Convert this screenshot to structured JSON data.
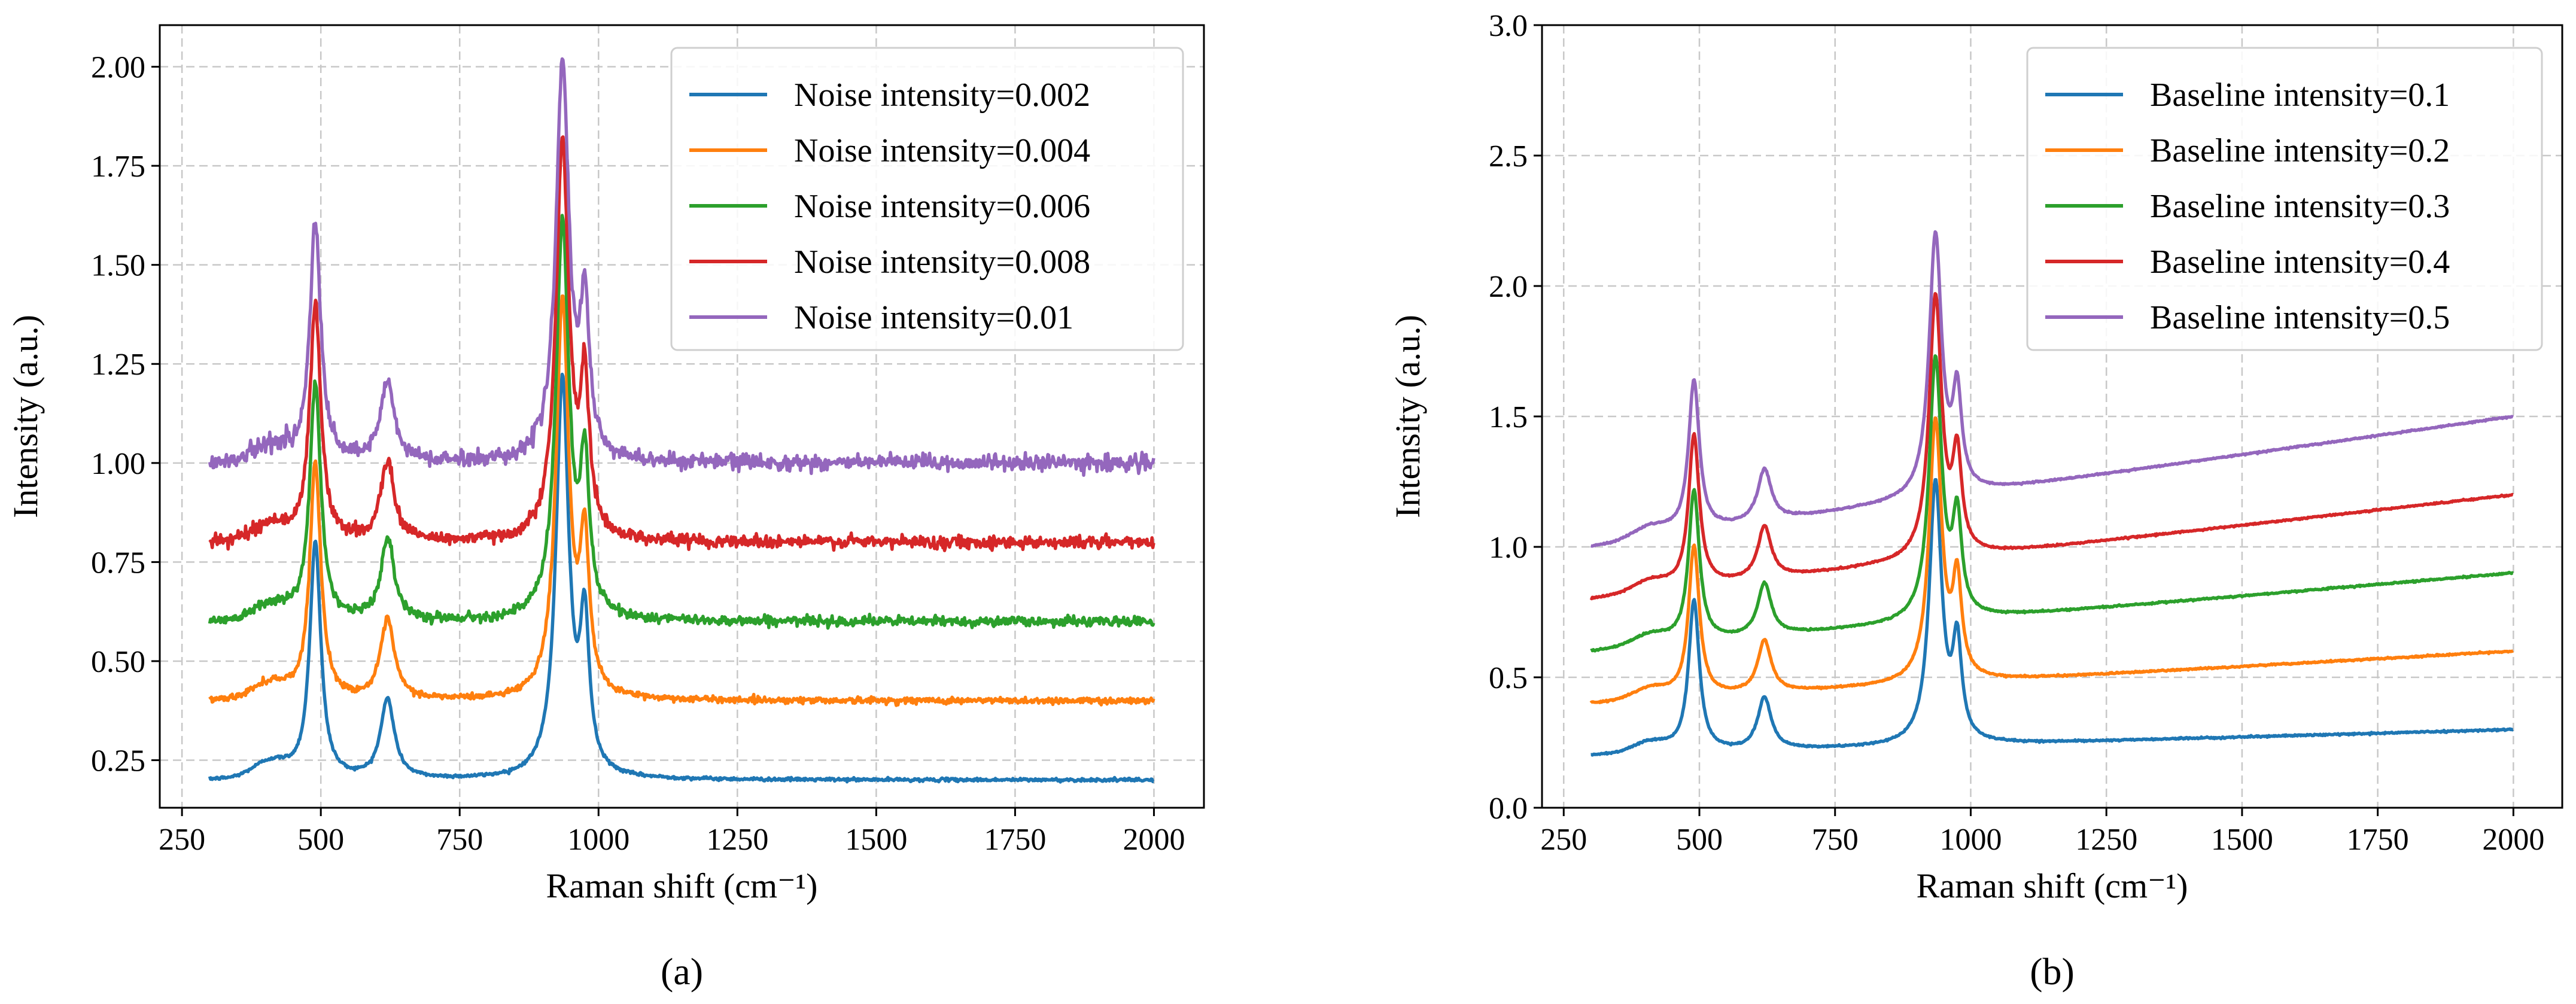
{
  "chart_data": [
    {
      "type": "line",
      "panel_label": "(a)",
      "xlabel": "Raman shift (cm⁻¹)",
      "ylabel": "Intensity (a.u.)",
      "xlim": [
        210,
        2090
      ],
      "ylim": [
        0.13,
        2.105
      ],
      "xticks": [
        250,
        500,
        750,
        1000,
        1250,
        1500,
        1750,
        2000
      ],
      "yticks": [
        0.25,
        0.5,
        0.75,
        1.0,
        1.25,
        1.5,
        1.75,
        2.0
      ],
      "ytick_labels": [
        "0.25",
        "0.50",
        "0.75",
        "1.00",
        "1.25",
        "1.50",
        "1.75",
        "2.00"
      ],
      "grid": true,
      "legend_position": "top-right",
      "x_range": [
        300,
        2000
      ],
      "peaks": [
        {
          "center": 490,
          "width": 12
        },
        {
          "center": 620,
          "width": 15
        },
        {
          "center": 935,
          "width": 14
        },
        {
          "center": 975,
          "width": 10
        }
      ],
      "series": [
        {
          "name": "Noise intensity=0.002",
          "color": "#1f77b4",
          "offset": 0.2,
          "noise": 0.002,
          "baseline_slope": 0,
          "peak_heights": [
            0.6,
            0.2,
            1.0,
            0.37
          ]
        },
        {
          "name": "Noise intensity=0.004",
          "color": "#ff7f0e",
          "offset": 0.4,
          "noise": 0.004,
          "baseline_slope": 0,
          "peak_heights": [
            0.6,
            0.2,
            1.0,
            0.37
          ]
        },
        {
          "name": "Noise intensity=0.006",
          "color": "#2ca02c",
          "offset": 0.6,
          "noise": 0.006,
          "baseline_slope": 0,
          "peak_heights": [
            0.6,
            0.2,
            1.0,
            0.37
          ]
        },
        {
          "name": "Noise intensity=0.008",
          "color": "#d62728",
          "offset": 0.8,
          "noise": 0.008,
          "baseline_slope": 0,
          "peak_heights": [
            0.6,
            0.2,
            1.0,
            0.37
          ]
        },
        {
          "name": "Noise intensity=0.01",
          "color": "#9467bd",
          "offset": 1.0,
          "noise": 0.01,
          "baseline_slope": 0,
          "peak_heights": [
            0.6,
            0.2,
            1.0,
            0.37
          ]
        }
      ]
    },
    {
      "type": "line",
      "panel_label": "(b)",
      "xlabel": "Raman shift (cm⁻¹)",
      "ylabel": "Intensity (a.u.)",
      "xlim": [
        210,
        2090
      ],
      "ylim": [
        0.0,
        3.0
      ],
      "xticks": [
        250,
        500,
        750,
        1000,
        1250,
        1500,
        1750,
        2000
      ],
      "yticks": [
        0.0,
        0.5,
        1.0,
        1.5,
        2.0,
        2.5,
        3.0
      ],
      "ytick_labels": [
        "0.0",
        "0.5",
        "1.0",
        "1.5",
        "2.0",
        "2.5",
        "3.0"
      ],
      "grid": true,
      "legend_position": "top-right",
      "x_range": [
        300,
        2000
      ],
      "peaks": [
        {
          "center": 490,
          "width": 12
        },
        {
          "center": 620,
          "width": 15
        },
        {
          "center": 935,
          "width": 14
        },
        {
          "center": 975,
          "width": 10
        }
      ],
      "series": [
        {
          "name": "Baseline intensity=0.1",
          "color": "#1f77b4",
          "offset": 0.2,
          "noise": 0.0015,
          "baseline_slope": 0.1,
          "peak_heights": [
            0.58,
            0.2,
            1.0,
            0.36
          ]
        },
        {
          "name": "Baseline intensity=0.2",
          "color": "#ff7f0e",
          "offset": 0.4,
          "noise": 0.0015,
          "baseline_slope": 0.2,
          "peak_heights": [
            0.58,
            0.2,
            1.0,
            0.36
          ]
        },
        {
          "name": "Baseline intensity=0.3",
          "color": "#2ca02c",
          "offset": 0.6,
          "noise": 0.0015,
          "baseline_slope": 0.3,
          "peak_heights": [
            0.58,
            0.2,
            1.0,
            0.36
          ]
        },
        {
          "name": "Baseline intensity=0.4",
          "color": "#d62728",
          "offset": 0.8,
          "noise": 0.0015,
          "baseline_slope": 0.4,
          "peak_heights": [
            0.58,
            0.2,
            1.0,
            0.36
          ]
        },
        {
          "name": "Baseline intensity=0.5",
          "color": "#9467bd",
          "offset": 1.0,
          "noise": 0.0015,
          "baseline_slope": 0.5,
          "peak_heights": [
            0.58,
            0.2,
            1.0,
            0.36
          ]
        }
      ]
    }
  ]
}
